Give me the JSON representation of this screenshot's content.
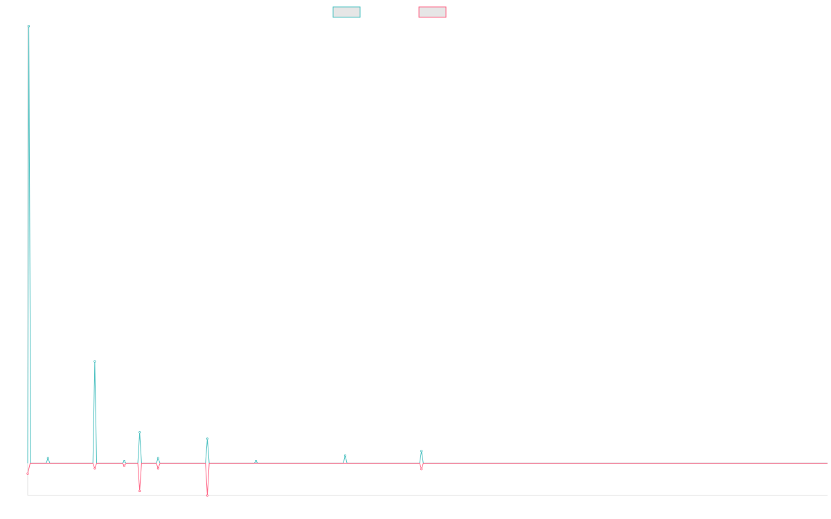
{
  "chart_data": {
    "type": "line",
    "title": "",
    "xlabel": "",
    "ylabel": "",
    "grid": false,
    "legend_position": "top-center",
    "ylim": [
      -50,
      680
    ],
    "xlim": [
      0,
      130
    ],
    "series": [
      {
        "stroke": "#4bc0c0",
        "fill": "#e6e6e6",
        "points": [
          [
            0,
            0
          ],
          [
            0.18,
            678
          ],
          [
            0.5,
            0
          ],
          [
            3,
            0
          ],
          [
            3.3,
            8
          ],
          [
            3.6,
            0
          ],
          [
            10.6,
            0
          ],
          [
            10.9,
            158
          ],
          [
            11.2,
            0
          ],
          [
            15.4,
            0
          ],
          [
            15.7,
            3
          ],
          [
            16,
            0
          ],
          [
            17.9,
            0
          ],
          [
            18.2,
            48
          ],
          [
            18.5,
            0
          ],
          [
            20.9,
            0
          ],
          [
            21.2,
            8
          ],
          [
            21.5,
            0
          ],
          [
            28.9,
            0
          ],
          [
            29.2,
            38
          ],
          [
            29.5,
            0
          ],
          [
            36.8,
            0
          ],
          [
            37.1,
            3
          ],
          [
            37.4,
            0
          ],
          [
            51.3,
            0
          ],
          [
            51.6,
            12
          ],
          [
            51.9,
            0
          ],
          [
            63.7,
            0
          ],
          [
            64,
            19
          ],
          [
            64.3,
            0
          ],
          [
            130,
            0
          ]
        ]
      },
      {
        "stroke": "#ff6384",
        "fill": "#e6e6e6",
        "points": [
          [
            0,
            -16
          ],
          [
            0.4,
            0
          ],
          [
            10.6,
            0
          ],
          [
            10.9,
            -8
          ],
          [
            11.2,
            0
          ],
          [
            15.4,
            0
          ],
          [
            15.7,
            -4
          ],
          [
            16,
            0
          ],
          [
            17.9,
            0
          ],
          [
            18.2,
            -43
          ],
          [
            18.5,
            0
          ],
          [
            20.9,
            0
          ],
          [
            21.2,
            -8
          ],
          [
            21.5,
            0
          ],
          [
            28.9,
            0
          ],
          [
            29.2,
            -50
          ],
          [
            29.5,
            0
          ],
          [
            63.7,
            0
          ],
          [
            64,
            -9
          ],
          [
            64.3,
            0
          ],
          [
            130,
            0
          ]
        ]
      }
    ]
  }
}
